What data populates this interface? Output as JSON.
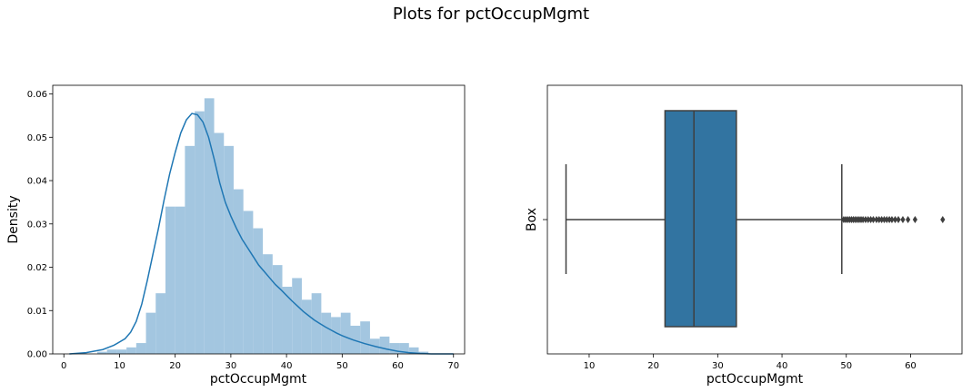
{
  "figure_title": "Plots for pctOccupMgmt",
  "colors": {
    "hist_fill": "#a3c6e0",
    "kde_line": "#1f77b4",
    "box_fill": "#3274a1",
    "box_edge": "#3f3f3f"
  },
  "chart_data": [
    {
      "type": "histogram",
      "xlabel": "pctOccupMgmt",
      "ylabel": "Density",
      "xlim": [
        -2,
        72
      ],
      "ylim": [
        0,
        0.062
      ],
      "xticks": [
        "0",
        "10",
        "20",
        "30",
        "40",
        "50",
        "60",
        "70"
      ],
      "yticks": [
        "0.00",
        "0.01",
        "0.02",
        "0.03",
        "0.04",
        "0.05",
        "0.06"
      ],
      "bin_start": 6.0,
      "bin_width": 1.75,
      "bin_densities": [
        0.0005,
        0.001,
        0.001,
        0.0015,
        0.0025,
        0.0095,
        0.014,
        0.034,
        0.034,
        0.048,
        0.056,
        0.059,
        0.051,
        0.048,
        0.038,
        0.033,
        0.029,
        0.023,
        0.0205,
        0.0155,
        0.0175,
        0.0125,
        0.014,
        0.0095,
        0.0085,
        0.0095,
        0.0065,
        0.0075,
        0.0035,
        0.004,
        0.0025,
        0.0025,
        0.0015,
        0.0005
      ],
      "kde": {
        "x": [
          1,
          4,
          7,
          9,
          11,
          12,
          13,
          14,
          15,
          16,
          17,
          18,
          19,
          20,
          21,
          22,
          23,
          24,
          25,
          26,
          27,
          28,
          29,
          30,
          31,
          32,
          33,
          34,
          35,
          36,
          37,
          38,
          39,
          40,
          41,
          42,
          43,
          44,
          45,
          46,
          47,
          48,
          49,
          50,
          52,
          54,
          56,
          58,
          60,
          62,
          64,
          66,
          68,
          70
        ],
        "y": [
          0.0,
          0.0003,
          0.001,
          0.002,
          0.0035,
          0.005,
          0.0075,
          0.0115,
          0.017,
          0.023,
          0.029,
          0.0355,
          0.0415,
          0.0465,
          0.051,
          0.054,
          0.0555,
          0.0552,
          0.0535,
          0.05,
          0.045,
          0.0395,
          0.035,
          0.0318,
          0.029,
          0.0265,
          0.0245,
          0.0225,
          0.0205,
          0.019,
          0.0175,
          0.016,
          0.0148,
          0.0135,
          0.0122,
          0.011,
          0.0098,
          0.0088,
          0.0078,
          0.007,
          0.0062,
          0.0055,
          0.0048,
          0.0042,
          0.0032,
          0.0024,
          0.0017,
          0.0011,
          0.0006,
          0.0003,
          0.0001,
          0.0,
          0.0,
          0.0
        ]
      }
    },
    {
      "type": "box",
      "xlabel": "pctOccupMgmt",
      "ylabel": "Box",
      "xlim": [
        3.5,
        68.0
      ],
      "xticks": [
        "10",
        "20",
        "30",
        "40",
        "50",
        "60"
      ],
      "whisker_low": 6.4,
      "q1": 21.8,
      "median": 26.3,
      "q3": 32.9,
      "whisker_high": 49.3,
      "outliers": [
        49.6,
        49.9,
        50.2,
        50.5,
        50.8,
        51.1,
        51.4,
        51.7,
        52.0,
        52.3,
        52.6,
        53.0,
        53.4,
        53.8,
        54.2,
        54.7,
        55.1,
        55.5,
        55.9,
        56.3,
        56.7,
        57.1,
        57.6,
        58.1,
        58.8,
        59.6,
        60.7,
        65.0
      ]
    }
  ]
}
